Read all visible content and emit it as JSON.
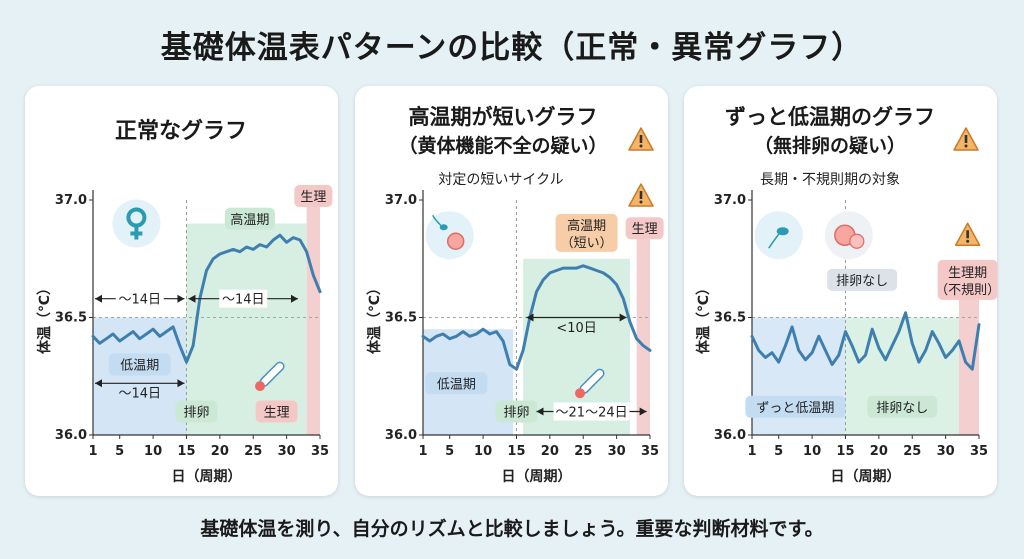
{
  "title": "基礎体温表パターンの比較（正常・異常グラフ）",
  "footer": "基礎体温を測り、自分のリズムと比較しましょう。重要な判断材料です。",
  "colors": {
    "line": "#3f7fb0",
    "low_phase": "#cfe2f4",
    "high_phase": "#d3ede0",
    "period": "#f3cfcf",
    "warning": "#e8a04a",
    "label_blue": "#c4dcf2",
    "label_green": "#cbe8d5",
    "label_pink": "#f5c8c8",
    "label_orange": "#f7cda7",
    "label_gray": "#dde2e8"
  },
  "chart_data": [
    {
      "type": "line",
      "title": "正常なグラフ",
      "subtitle": "",
      "note": "",
      "xlabel": "日（周期）",
      "ylabel": "体温（℃）",
      "xlim": [
        1,
        35
      ],
      "ylim": [
        36.0,
        37.0
      ],
      "xticks": [
        1,
        5,
        10,
        15,
        20,
        25,
        30,
        35
      ],
      "yticks": [
        "36.0",
        "36.5",
        "37.0"
      ],
      "x": [
        1,
        2,
        3,
        4,
        5,
        6,
        7,
        8,
        9,
        10,
        11,
        12,
        13,
        14,
        15,
        16,
        17,
        18,
        19,
        20,
        21,
        22,
        23,
        24,
        25,
        26,
        27,
        28,
        29,
        30,
        31,
        32,
        33,
        34,
        35
      ],
      "y": [
        36.42,
        36.39,
        36.41,
        36.43,
        36.4,
        36.42,
        36.44,
        36.41,
        36.43,
        36.45,
        36.42,
        36.44,
        36.46,
        36.38,
        36.31,
        36.38,
        36.58,
        36.7,
        36.75,
        36.77,
        36.78,
        36.79,
        36.78,
        36.8,
        36.79,
        36.81,
        36.8,
        36.83,
        36.85,
        36.82,
        36.84,
        36.83,
        36.78,
        36.68,
        36.61
      ],
      "labels": {
        "high_phase": "高温期",
        "period_top": "生理",
        "low_phase": "低温期",
        "arrow_left": "～14日",
        "arrow_right": "～14日",
        "arrow_bottom": "～14日",
        "ovulation": "排卵",
        "period_bottom": "生理"
      }
    },
    {
      "type": "line",
      "title": "高温期が短いグラフ",
      "subtitle": "（黄体機能不全の疑い）",
      "note": "対定の短いサイクル",
      "xlabel": "日（周期）",
      "ylabel": "体温（℃）",
      "xlim": [
        1,
        35
      ],
      "ylim": [
        36.0,
        37.0
      ],
      "xticks": [
        1,
        5,
        10,
        15,
        20,
        25,
        30,
        35
      ],
      "yticks": [
        "36.0",
        "36.5",
        "37.0"
      ],
      "x": [
        1,
        2,
        3,
        4,
        5,
        6,
        7,
        8,
        9,
        10,
        11,
        12,
        13,
        14,
        15,
        16,
        17,
        18,
        19,
        20,
        21,
        22,
        23,
        24,
        25,
        26,
        27,
        28,
        29,
        30,
        31,
        32,
        33,
        34,
        35
      ],
      "y": [
        36.42,
        36.4,
        36.42,
        36.43,
        36.41,
        36.42,
        36.44,
        36.42,
        36.43,
        36.45,
        36.43,
        36.44,
        36.4,
        36.3,
        36.28,
        36.36,
        36.5,
        36.61,
        36.66,
        36.69,
        36.7,
        36.71,
        36.71,
        36.71,
        36.72,
        36.71,
        36.7,
        36.69,
        36.67,
        36.64,
        36.58,
        36.48,
        36.41,
        36.38,
        36.36
      ],
      "labels": {
        "high_phase": "高温期",
        "high_phase_2": "（短い）",
        "period_top": "生理",
        "span": "<10日",
        "low_phase": "低温期",
        "ovulation": "排卵",
        "cycle": "～21～24日"
      }
    },
    {
      "type": "line",
      "title": "ずっと低温期のグラフ",
      "subtitle": "（無排卵の疑い）",
      "note": "長期・不規則期の対象",
      "xlabel": "日（周期）",
      "ylabel": "体温（℃）",
      "xlim": [
        1,
        35
      ],
      "ylim": [
        36.0,
        37.0
      ],
      "xticks": [
        1,
        5,
        10,
        15,
        20,
        25,
        30,
        35
      ],
      "yticks": [
        "36.0",
        "36.5",
        "37.0"
      ],
      "x": [
        1,
        2,
        3,
        4,
        5,
        6,
        7,
        8,
        9,
        10,
        11,
        12,
        13,
        14,
        15,
        16,
        17,
        18,
        19,
        20,
        21,
        22,
        23,
        24,
        25,
        26,
        27,
        28,
        29,
        30,
        31,
        32,
        33,
        34,
        35
      ],
      "y": [
        36.42,
        36.36,
        36.33,
        36.35,
        36.31,
        36.38,
        36.46,
        36.36,
        36.32,
        36.35,
        36.42,
        36.36,
        36.3,
        36.34,
        36.44,
        36.38,
        36.31,
        36.34,
        36.45,
        36.37,
        36.32,
        36.38,
        36.44,
        36.52,
        36.39,
        36.31,
        36.36,
        36.44,
        36.39,
        36.33,
        36.36,
        36.4,
        36.31,
        36.28,
        36.47
      ],
      "labels": {
        "no_ovulation_top": "排卵なし",
        "period_top": "生理期",
        "period_top_2": "（不規則）",
        "long_low": "ずっと低温期",
        "no_ovulation_bottom": "排卵なし"
      }
    }
  ]
}
